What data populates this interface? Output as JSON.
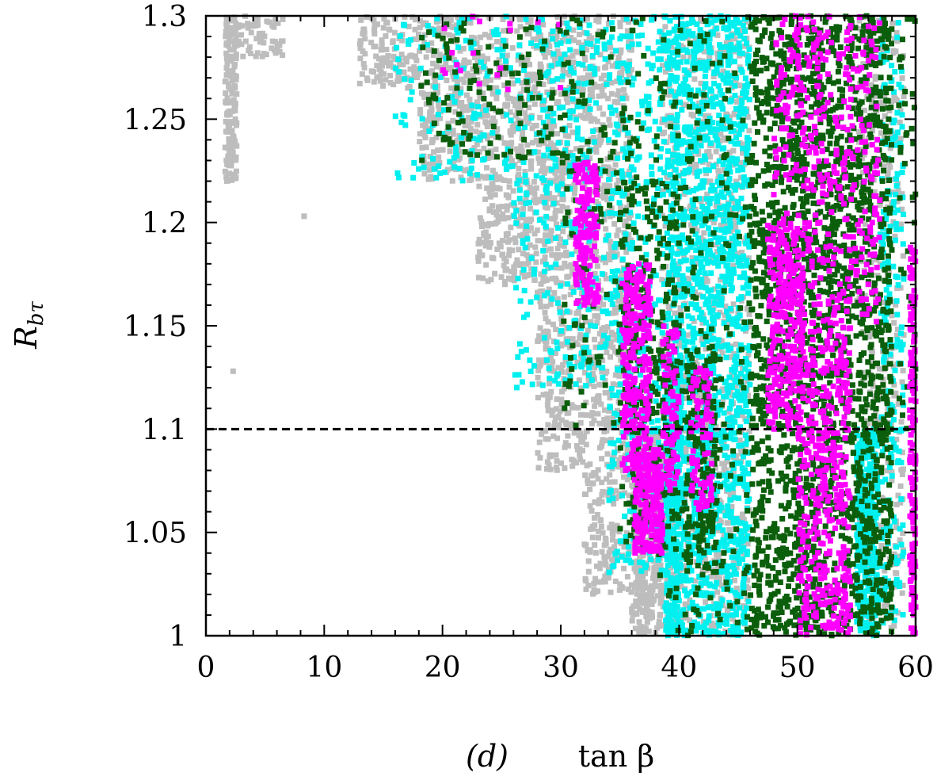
{
  "chart_data": {
    "type": "scatter",
    "title": "",
    "panel_label": "(d)",
    "xlabel": "tan β",
    "ylabel_main": "R",
    "ylabel_sub": "bτ",
    "xlim": [
      0,
      60
    ],
    "ylim": [
      1.0,
      1.3
    ],
    "xticks": [
      0,
      10,
      20,
      30,
      40,
      50,
      60
    ],
    "yticks": [
      1,
      1.05,
      1.1,
      1.15,
      1.2,
      1.25,
      1.3
    ],
    "xtick_labels": [
      "0",
      "10",
      "20",
      "30",
      "40",
      "50",
      "60"
    ],
    "ytick_labels": [
      "1",
      "1.05",
      "1.1",
      "1.15",
      "1.2",
      "1.25",
      "1.3"
    ],
    "reference_line": {
      "y": 1.1,
      "style": "dashed",
      "color": "#000000"
    },
    "grid": false,
    "legend": "none",
    "series": [
      {
        "color": "#bdbdbd",
        "regions": [
          {
            "x": [
              1.6,
              2.6
            ],
            "y": [
              1.22,
              1.3
            ],
            "n": 160,
            "dir": "down"
          },
          {
            "x": [
              2.6,
              6.5
            ],
            "y": [
              1.28,
              1.3
            ],
            "n": 60,
            "dir": "none"
          },
          {
            "x": [
              13,
              18
            ],
            "y": [
              1.265,
              1.3
            ],
            "n": 120,
            "dir": "none"
          },
          {
            "x": [
              18,
              23
            ],
            "y": [
              1.22,
              1.3
            ],
            "n": 260,
            "dir": "none"
          },
          {
            "x": [
              23,
              28
            ],
            "y": [
              1.17,
              1.3
            ],
            "n": 420,
            "dir": "none"
          },
          {
            "x": [
              28,
              32
            ],
            "y": [
              1.08,
              1.3
            ],
            "n": 520,
            "dir": "none"
          },
          {
            "x": [
              32,
              36
            ],
            "y": [
              1.02,
              1.3
            ],
            "n": 650,
            "dir": "none"
          },
          {
            "x": [
              36,
              38.5
            ],
            "y": [
              1.0,
              1.1
            ],
            "n": 420,
            "dir": "none"
          },
          {
            "x": [
              38.5,
              46
            ],
            "y": [
              1.0,
              1.3
            ],
            "n": 900,
            "dir": "none"
          },
          {
            "x": [
              55,
              59
            ],
            "y": [
              1.0,
              1.3
            ],
            "n": 350,
            "dir": "none"
          }
        ],
        "points": [
          [
            2.3,
            1.128
          ],
          [
            8.3,
            1.203
          ]
        ]
      },
      {
        "color": "#00f0f0",
        "regions": [
          {
            "x": [
              16,
              26
            ],
            "y": [
              1.22,
              1.3
            ],
            "n": 130,
            "dir": "none"
          },
          {
            "x": [
              26,
              34
            ],
            "y": [
              1.12,
              1.3
            ],
            "n": 320,
            "dir": "none"
          },
          {
            "x": [
              34,
              39
            ],
            "y": [
              1.03,
              1.3
            ],
            "n": 380,
            "dir": "none"
          },
          {
            "x": [
              39,
              46
            ],
            "y": [
              1.0,
              1.3
            ],
            "n": 1600,
            "dir": "none"
          },
          {
            "x": [
              38.8,
              40.2
            ],
            "y": [
              1.0,
              1.13
            ],
            "n": 320,
            "dir": "none"
          },
          {
            "x": [
              55,
              56.8
            ],
            "y": [
              1.0,
              1.1
            ],
            "n": 360,
            "dir": "none"
          },
          {
            "x": [
              57,
              59
            ],
            "y": [
              1.0,
              1.3
            ],
            "n": 200,
            "dir": "none"
          }
        ]
      },
      {
        "color": "#0b5e0b",
        "regions": [
          {
            "x": [
              18,
              30
            ],
            "y": [
              1.23,
              1.3
            ],
            "n": 120,
            "dir": "none"
          },
          {
            "x": [
              30,
              46
            ],
            "y": [
              1.1,
              1.3
            ],
            "n": 320,
            "dir": "none"
          },
          {
            "x": [
              35,
              40
            ],
            "y": [
              1.04,
              1.22
            ],
            "n": 260,
            "dir": "none"
          },
          {
            "x": [
              40.6,
              43.2
            ],
            "y": [
              1.03,
              1.14
            ],
            "n": 160,
            "dir": "none"
          },
          {
            "x": [
              38,
              46
            ],
            "y": [
              1.0,
              1.1
            ],
            "n": 80,
            "dir": "none"
          },
          {
            "x": [
              46,
              58
            ],
            "y": [
              1.0,
              1.3
            ],
            "n": 2200,
            "dir": "none"
          },
          {
            "x": [
              58.5,
              60
            ],
            "y": [
              1.1,
              1.3
            ],
            "n": 40,
            "dir": "none"
          }
        ]
      },
      {
        "color": "#ff00ff",
        "regions": [
          {
            "x": [
              31.2,
              33.2
            ],
            "y": [
              1.16,
              1.23
            ],
            "n": 160,
            "dir": "none"
          },
          {
            "x": [
              35.2,
              37.6
            ],
            "y": [
              1.08,
              1.18
            ],
            "n": 260,
            "dir": "none"
          },
          {
            "x": [
              36.2,
              38.6
            ],
            "y": [
              1.04,
              1.09
            ],
            "n": 220,
            "dir": "none"
          },
          {
            "x": [
              38.6,
              40.0
            ],
            "y": [
              1.07,
              1.15
            ],
            "n": 90,
            "dir": "none"
          },
          {
            "x": [
              41.0,
              42.8
            ],
            "y": [
              1.06,
              1.13
            ],
            "n": 90,
            "dir": "none"
          },
          {
            "x": [
              47.5,
              50.5
            ],
            "y": [
              1.1,
              1.2
            ],
            "n": 260,
            "dir": "none"
          },
          {
            "x": [
              48,
              57
            ],
            "y": [
              1.15,
              1.3
            ],
            "n": 420,
            "dir": "none"
          },
          {
            "x": [
              50,
              54.5
            ],
            "y": [
              1.0,
              1.15
            ],
            "n": 420,
            "dir": "none"
          },
          {
            "x": [
              59.5,
              60
            ],
            "y": [
              1.0,
              1.19
            ],
            "n": 160,
            "dir": "none"
          },
          {
            "x": [
              20,
              30
            ],
            "y": [
              1.26,
              1.3
            ],
            "n": 18,
            "dir": "none"
          }
        ]
      }
    ]
  }
}
